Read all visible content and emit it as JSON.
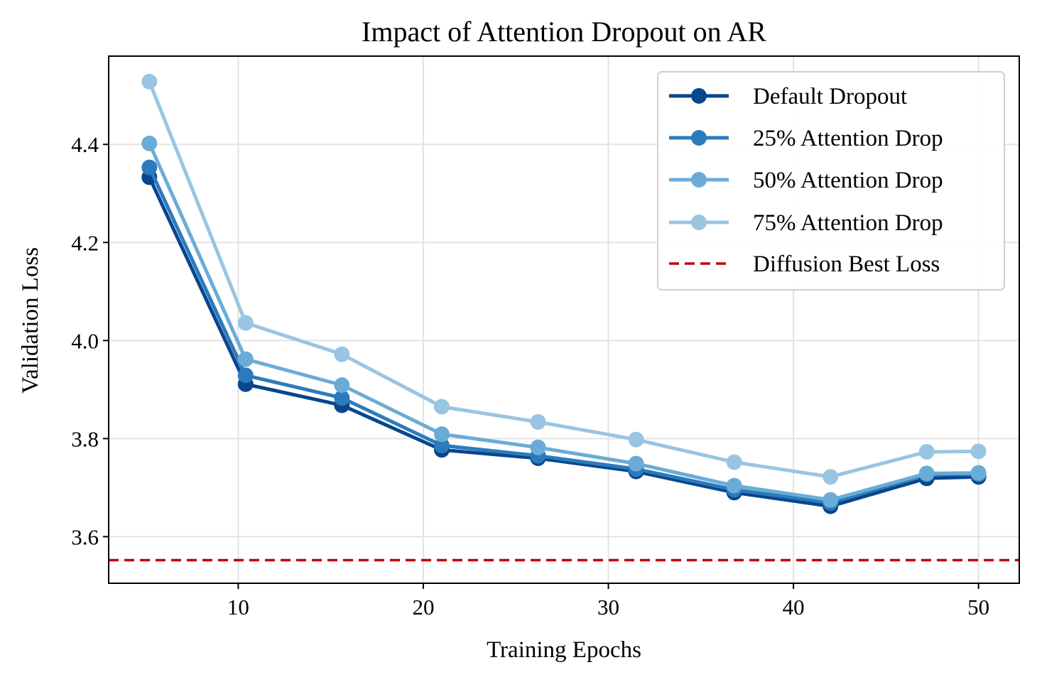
{
  "chart_data": {
    "type": "line",
    "title": "Impact of Attention Dropout on AR",
    "xlabel": "Training Epochs",
    "ylabel": "Validation Loss",
    "xlim": [
      3,
      52.2
    ],
    "ylim": [
      3.505,
      4.58
    ],
    "xticks": [
      10,
      20,
      30,
      40,
      50
    ],
    "yticks": [
      3.6,
      3.8,
      4.0,
      4.2,
      4.4
    ],
    "grid": true,
    "legend_position": "top-right",
    "x": [
      5.2,
      10.4,
      15.6,
      21.0,
      26.2,
      31.5,
      36.8,
      42.0,
      47.2,
      50.0
    ],
    "series": [
      {
        "name": "Default Dropout",
        "color": "#08468e",
        "values": [
          4.333,
          3.911,
          3.868,
          3.777,
          3.76,
          3.733,
          3.69,
          3.662,
          3.719,
          3.722
        ]
      },
      {
        "name": "25% Attention Drop",
        "color": "#2b7bbc",
        "values": [
          4.353,
          3.929,
          3.883,
          3.786,
          3.765,
          3.738,
          3.696,
          3.669,
          3.727,
          3.727
        ]
      },
      {
        "name": "50% Attention Drop",
        "color": "#6aacd7",
        "values": [
          4.402,
          3.962,
          3.909,
          3.809,
          3.782,
          3.749,
          3.704,
          3.675,
          3.729,
          3.73
        ]
      },
      {
        "name": "75% Attention Drop",
        "color": "#99c5e2",
        "values": [
          4.528,
          4.036,
          3.972,
          3.865,
          3.834,
          3.798,
          3.752,
          3.722,
          3.773,
          3.774
        ]
      }
    ],
    "reference_line": {
      "name": "Diffusion Best Loss",
      "value": 3.552,
      "color": "#c00000",
      "style": "dashed"
    }
  }
}
